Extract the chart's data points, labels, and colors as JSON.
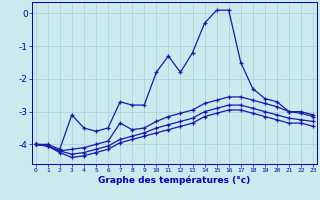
{
  "x": [
    0,
    1,
    2,
    3,
    4,
    5,
    6,
    7,
    8,
    9,
    10,
    11,
    12,
    13,
    14,
    15,
    16,
    17,
    18,
    19,
    20,
    21,
    22,
    23
  ],
  "line1": [
    -4.0,
    -4.0,
    -4.15,
    -3.1,
    -3.5,
    -3.6,
    -3.5,
    -2.7,
    -2.8,
    -2.8,
    -1.8,
    -1.3,
    -1.8,
    -1.2,
    -0.3,
    0.1,
    0.1,
    -1.5,
    -2.3,
    -2.6,
    -2.7,
    -3.0,
    -3.0,
    -3.1
  ],
  "line2": [
    -4.0,
    -4.05,
    -4.2,
    -4.15,
    -4.1,
    -4.0,
    -3.9,
    -3.35,
    -3.55,
    -3.5,
    -3.3,
    -3.15,
    -3.05,
    -2.95,
    -2.75,
    -2.65,
    -2.55,
    -2.55,
    -2.65,
    -2.75,
    -2.85,
    -3.0,
    -3.05,
    -3.15
  ],
  "line3": [
    -4.0,
    -4.05,
    -4.2,
    -4.3,
    -4.25,
    -4.15,
    -4.05,
    -3.85,
    -3.75,
    -3.65,
    -3.5,
    -3.4,
    -3.3,
    -3.2,
    -3.0,
    -2.9,
    -2.8,
    -2.8,
    -2.9,
    -3.0,
    -3.1,
    -3.2,
    -3.25,
    -3.3
  ],
  "line4": [
    -4.0,
    -4.05,
    -4.25,
    -4.4,
    -4.35,
    -4.25,
    -4.15,
    -3.95,
    -3.85,
    -3.75,
    -3.65,
    -3.55,
    -3.45,
    -3.35,
    -3.15,
    -3.05,
    -2.95,
    -2.95,
    -3.05,
    -3.15,
    -3.25,
    -3.35,
    -3.35,
    -3.45
  ],
  "line_color": "#1a1aaa",
  "bg_color": "#cce9ed",
  "grid_color": "#a8cdd4",
  "axis_color": "#0000bb",
  "xlabel": "Graphe des températures (°c)",
  "yticks": [
    0,
    -1,
    -2,
    -3,
    -4
  ],
  "xticks": [
    0,
    1,
    2,
    3,
    4,
    5,
    6,
    7,
    8,
    9,
    10,
    11,
    12,
    13,
    14,
    15,
    16,
    17,
    18,
    19,
    20,
    21,
    22,
    23
  ],
  "ylim": [
    -4.6,
    0.35
  ],
  "xlim": [
    -0.3,
    23.3
  ]
}
